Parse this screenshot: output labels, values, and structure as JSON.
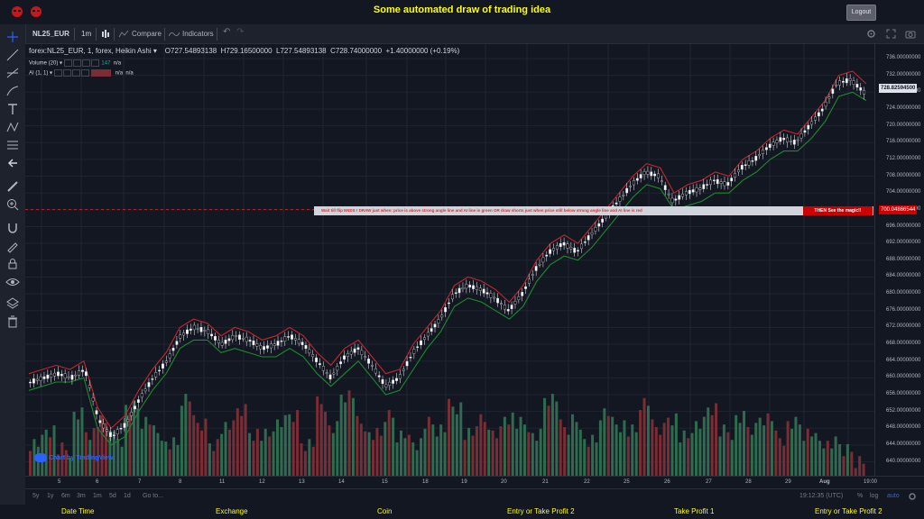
{
  "app": {
    "title": "Some automated draw of trading idea",
    "logout_label": "Logout"
  },
  "header": {
    "symbol": "NL25_EUR",
    "interval": "1m",
    "compare_label": "Compare",
    "indicators_label": "Indicators"
  },
  "legend": {
    "main": "forex:NL25_EUR, 1, forex, Heikin Ashi",
    "open": "O727.54893138",
    "high": "H729.16500000",
    "low": "L727.54893138",
    "close": "C728.74000000",
    "change": "+1.40000000 (+0.19%)",
    "volume_label": "Volume (20)",
    "volume_value": "147",
    "volume_na": "n/a",
    "ai_label": "AI (1, 1)",
    "ai_na1": "n/a",
    "ai_na2": "n/a"
  },
  "banner": {
    "text": "Wait till flip ENDS  !  DRAW just when:  price is above strong angle line and AI line is green      OR       draw shorts just when price still below strong angle line and AI line is red",
    "magic": "THEN See the magic!!"
  },
  "price_axis": {
    "ticks": [
      "736.00000000",
      "732.00000000",
      "728.00000000",
      "724.00000000",
      "720.00000000",
      "716.00000000",
      "712.00000000",
      "708.00000000",
      "704.00000000",
      "700.00000000",
      "696.00000000",
      "692.00000000",
      "688.00000000",
      "684.00000000",
      "680.00000000",
      "676.00000000",
      "672.00000000",
      "668.00000000",
      "664.00000000",
      "660.00000000",
      "656.00000000",
      "652.00000000",
      "648.00000000",
      "644.00000000",
      "640.00000000"
    ],
    "current_price": "728.82594500",
    "line_price": "700.04866544"
  },
  "time_axis": {
    "labels": [
      "5",
      "6",
      "7",
      "8",
      "11",
      "12",
      "13",
      "14",
      "15",
      "18",
      "19",
      "20",
      "21",
      "22",
      "25",
      "26",
      "27",
      "28",
      "29",
      "Aug",
      "19:00"
    ]
  },
  "bottom_toolbar": {
    "ranges": [
      "5y",
      "1y",
      "6m",
      "3m",
      "1m",
      "5d",
      "1d"
    ],
    "goto_label": "Go to...",
    "clock": "19:12:35 (UTC)",
    "percent_label": "%",
    "log_label": "log",
    "auto_label": "auto"
  },
  "branding": {
    "tv_text": "Chart by TradingView"
  },
  "footer": {
    "columns": [
      "Date Time",
      "Exchange",
      "Coin",
      "Entry or Take Profit 2",
      "Take Profit 1",
      "Entry or Take Profit 2"
    ]
  },
  "colors": {
    "title_yellow": "#ffff00",
    "bull_line": "#1e8a2e",
    "bear_line": "#c2272d",
    "vol_green": "#2e6b4f",
    "vol_red": "#7a2d35",
    "banner_red": "#cc0000"
  },
  "chart_data": {
    "type": "line",
    "title": "forex:NL25_EUR, 1, forex, Heikin Ashi",
    "xlabel": "",
    "ylabel": "",
    "ylim": [
      638,
      738
    ],
    "x": [
      0,
      4,
      8,
      12,
      16,
      20,
      24,
      28,
      32,
      36,
      40,
      44,
      48,
      52,
      56,
      60,
      64,
      68,
      72,
      76,
      80,
      84,
      88,
      92,
      96,
      100,
      104,
      108,
      112,
      116,
      120,
      124,
      128,
      132,
      136,
      140,
      144,
      148,
      152,
      156,
      160,
      164,
      168,
      172,
      176,
      180,
      184,
      188,
      192,
      196,
      200,
      204,
      208,
      212,
      216,
      220,
      224,
      228,
      232,
      236,
      240,
      244
    ],
    "series": [
      {
        "name": "Price",
        "values": [
          659,
          660,
          661,
          660,
          662,
          650,
          646,
          649,
          655,
          660,
          664,
          670,
          672,
          671,
          668,
          670,
          669,
          667,
          668,
          670,
          668,
          664,
          660,
          665,
          667,
          663,
          658,
          660,
          666,
          670,
          674,
          680,
          682,
          681,
          679,
          676,
          680,
          686,
          690,
          692,
          690,
          694,
          698,
          702,
          706,
          709,
          708,
          702,
          704,
          705,
          707,
          706,
          710,
          712,
          715,
          717,
          716,
          720,
          724,
          730,
          731,
          728
        ]
      },
      {
        "name": "Strong angle line",
        "values": [
          657,
          658,
          659,
          659,
          660,
          648,
          644,
          646,
          652,
          657,
          661,
          667,
          669,
          669,
          666,
          667,
          666,
          665,
          665,
          667,
          665,
          661,
          658,
          661,
          664,
          660,
          656,
          657,
          662,
          667,
          671,
          677,
          679,
          678,
          676,
          674,
          677,
          683,
          687,
          689,
          688,
          691,
          695,
          699,
          703,
          706,
          705,
          700,
          701,
          702,
          704,
          704,
          707,
          709,
          712,
          714,
          714,
          717,
          721,
          727,
          728,
          726
        ]
      },
      {
        "name": "AI line",
        "values": [
          661,
          662,
          663,
          662,
          664,
          653,
          648,
          651,
          657,
          662,
          666,
          672,
          674,
          673,
          670,
          672,
          671,
          669,
          670,
          672,
          670,
          666,
          663,
          667,
          669,
          665,
          661,
          662,
          668,
          672,
          676,
          682,
          684,
          683,
          681,
          678,
          682,
          688,
          692,
          694,
          692,
          696,
          700,
          704,
          708,
          711,
          710,
          704,
          706,
          707,
          709,
          708,
          712,
          714,
          717,
          719,
          718,
          722,
          726,
          732,
          733,
          730
        ]
      }
    ],
    "volume": [
      40,
      55,
      30,
      70,
      50,
      60,
      45,
      80,
      65,
      50,
      35,
      90,
      60,
      40,
      55,
      75,
      50,
      45,
      60,
      70,
      40,
      85,
      55,
      95,
      60,
      45,
      70,
      50,
      40,
      60,
      55,
      80,
      45,
      65,
      50,
      70,
      60,
      45,
      90,
      55,
      65,
      40,
      75,
      60,
      50,
      85,
      55,
      70,
      45,
      60,
      80,
      50,
      65,
      55,
      70,
      45,
      60,
      50,
      40,
      35,
      30,
      20
    ]
  }
}
